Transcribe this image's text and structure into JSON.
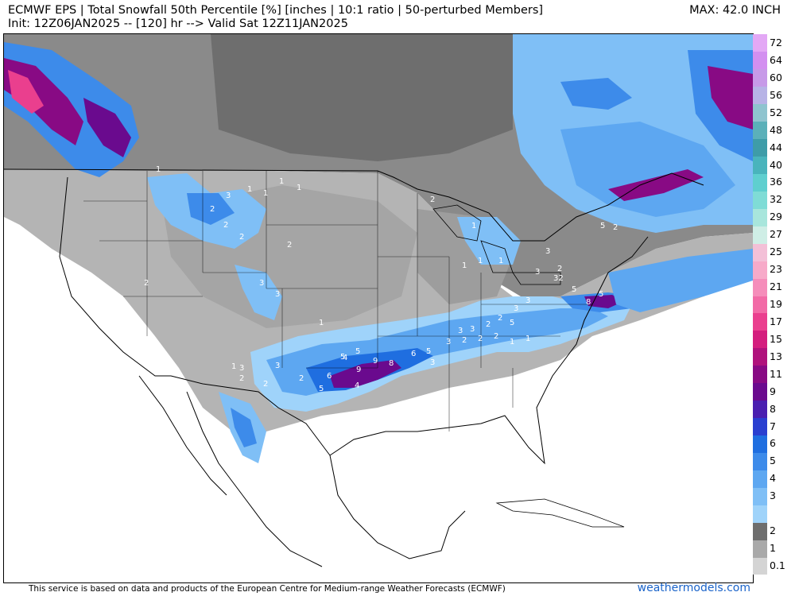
{
  "header": {
    "title_line1": "ECMWF EPS | Total Snowfall 50th Percentile [%] [inches | 10:1 ratio | 50-perturbed Members]",
    "title_line2": "Init: 12Z06JAN2025 -- [120] hr --> Valid Sat 12Z11JAN2025",
    "max_label": "MAX: 42.0 INCH"
  },
  "footer": {
    "attribution": "This service is based on data and products of the European Centre for Medium-range Weather Forecasts (ECMWF)",
    "website": "weathermodels.com"
  },
  "colorbar": {
    "levels": [
      {
        "label": "0.1",
        "color": "#d4d4d4"
      },
      {
        "label": "1",
        "color": "#a9a9a9"
      },
      {
        "label": "2",
        "color": "#6e6e6e"
      },
      {
        "label": "",
        "color": "#9fd3fa"
      },
      {
        "label": "3",
        "color": "#7fbff6"
      },
      {
        "label": "4",
        "color": "#5da7f1"
      },
      {
        "label": "5",
        "color": "#3d8bea"
      },
      {
        "label": "6",
        "color": "#1f6ee0"
      },
      {
        "label": "7",
        "color": "#2a3fd0"
      },
      {
        "label": "8",
        "color": "#4a1fb0"
      },
      {
        "label": "9",
        "color": "#6a0a8e"
      },
      {
        "label": "11",
        "color": "#880a84"
      },
      {
        "label": "13",
        "color": "#b0127c"
      },
      {
        "label": "15",
        "color": "#d41e7e"
      },
      {
        "label": "17",
        "color": "#ea3f8e"
      },
      {
        "label": "19",
        "color": "#f26aa6"
      },
      {
        "label": "21",
        "color": "#f58dba"
      },
      {
        "label": "23",
        "color": "#f7aac9"
      },
      {
        "label": "25",
        "color": "#f3c0d7"
      },
      {
        "label": "27",
        "color": "#cfeee6"
      },
      {
        "label": "29",
        "color": "#a8e6dc"
      },
      {
        "label": "32",
        "color": "#7fdcd6"
      },
      {
        "label": "36",
        "color": "#5fcfcf"
      },
      {
        "label": "40",
        "color": "#49b4bc"
      },
      {
        "label": "44",
        "color": "#3e9ca8"
      },
      {
        "label": "48",
        "color": "#5bb0b9"
      },
      {
        "label": "52",
        "color": "#8fc4cf"
      },
      {
        "label": "56",
        "color": "#b7b3e6"
      },
      {
        "label": "60",
        "color": "#c79ae8"
      },
      {
        "label": "64",
        "color": "#d38ff0"
      },
      {
        "label": "72",
        "color": "#e3a8f5"
      }
    ]
  },
  "map": {
    "snow_labels": [
      {
        "value": "9"
      },
      {
        "value": "9"
      },
      {
        "value": "8"
      },
      {
        "value": "6"
      },
      {
        "value": "5"
      },
      {
        "value": "5"
      },
      {
        "value": "5"
      },
      {
        "value": "4"
      },
      {
        "value": "4"
      },
      {
        "value": "6"
      },
      {
        "value": "5"
      },
      {
        "value": "3"
      },
      {
        "value": "3"
      },
      {
        "value": "2"
      },
      {
        "value": "2"
      },
      {
        "value": "2"
      },
      {
        "value": "1"
      },
      {
        "value": "1"
      },
      {
        "value": "3"
      },
      {
        "value": "3"
      },
      {
        "value": "2"
      },
      {
        "value": "2"
      },
      {
        "value": "3"
      },
      {
        "value": "3"
      },
      {
        "value": "32"
      },
      {
        "value": "5"
      },
      {
        "value": "8"
      },
      {
        "value": "5"
      },
      {
        "value": "3"
      },
      {
        "value": "2"
      },
      {
        "value": "1"
      },
      {
        "value": "1"
      },
      {
        "value": "3"
      },
      {
        "value": "3"
      },
      {
        "value": "2"
      },
      {
        "value": "1"
      },
      {
        "value": "1"
      },
      {
        "value": "2"
      },
      {
        "value": "2"
      },
      {
        "value": "1"
      },
      {
        "value": "1"
      },
      {
        "value": "2"
      },
      {
        "value": "1"
      },
      {
        "value": "1"
      },
      {
        "value": "3"
      },
      {
        "value": "2"
      },
      {
        "value": "1"
      },
      {
        "value": "2"
      },
      {
        "value": "2"
      },
      {
        "value": "1"
      },
      {
        "value": "3"
      },
      {
        "value": "3"
      },
      {
        "value": "2"
      },
      {
        "value": "2"
      },
      {
        "value": "1"
      },
      {
        "value": "5"
      },
      {
        "value": "2"
      },
      {
        "value": "5"
      },
      {
        "value": "3"
      }
    ]
  }
}
